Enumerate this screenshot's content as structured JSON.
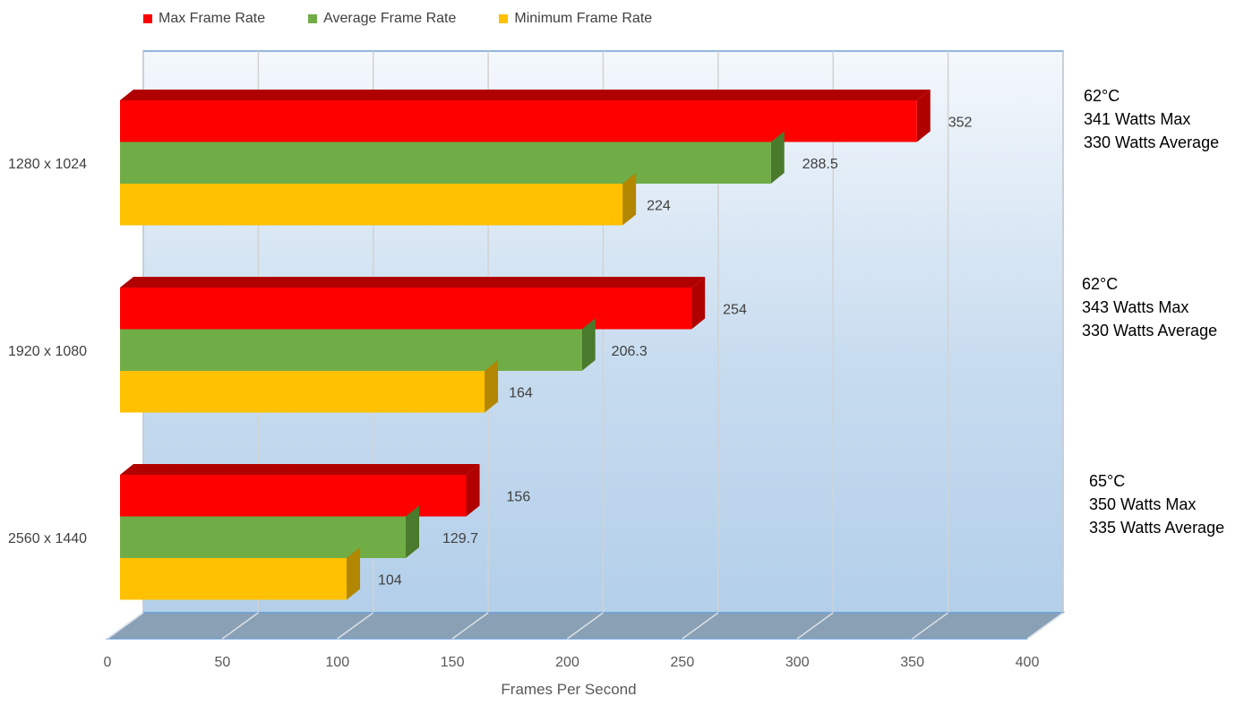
{
  "chart_data": {
    "type": "bar",
    "orientation": "horizontal",
    "style": "3d",
    "categories": [
      "1280 x 1024",
      "1920 x 1080",
      "2560 x 1440"
    ],
    "series": [
      {
        "name": "Max Frame Rate",
        "color": "#ff0000",
        "side_color": "#b00000",
        "values": [
          352,
          254,
          156
        ],
        "labels": [
          "352",
          "254",
          "156"
        ]
      },
      {
        "name": "Average Frame Rate",
        "color": "#70ad47",
        "side_color": "#4a7a2c",
        "values": [
          288.5,
          206.3,
          129.7
        ],
        "labels": [
          "288.5",
          "206.3",
          "129.7"
        ]
      },
      {
        "name": "Minimum Frame Rate",
        "color": "#ffc000",
        "side_color": "#b38600",
        "values": [
          224,
          164,
          104
        ],
        "labels": [
          "224",
          "164",
          "104"
        ]
      }
    ],
    "xlabel": "Frames Per Second",
    "xlim": [
      0,
      400
    ],
    "xticks": [
      0,
      50,
      100,
      150,
      200,
      250,
      300,
      350,
      400
    ],
    "xtick_labels": [
      "0",
      "50",
      "100",
      "150",
      "200",
      "250",
      "300",
      "350",
      "400"
    ],
    "grid": true,
    "legend_position": "top-left"
  },
  "annotations": [
    {
      "lines": [
        "62°C",
        "341 Watts Max",
        "330 Watts Average"
      ]
    },
    {
      "lines": [
        "62°C",
        "343 Watts Max",
        "330 Watts Average"
      ]
    },
    {
      "lines": [
        "65°C",
        "350 Watts Max",
        "335 Watts Average"
      ]
    }
  ]
}
